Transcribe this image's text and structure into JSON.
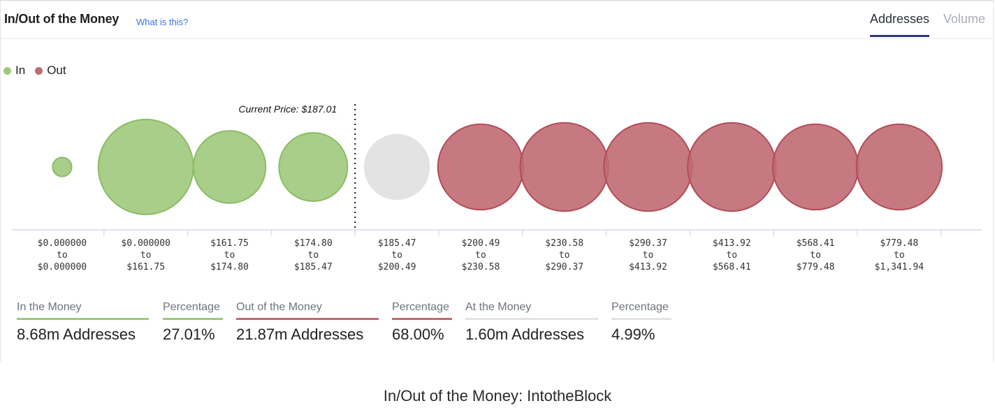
{
  "header": {
    "title": "In/Out of the Money",
    "help_link": "What is this?",
    "tabs": [
      {
        "label": "Addresses",
        "active": true
      },
      {
        "label": "Volume",
        "active": false
      }
    ]
  },
  "legend": [
    {
      "label": "In",
      "color": "#9ec97c"
    },
    {
      "label": "Out",
      "color": "#c06a72"
    }
  ],
  "chart_data": {
    "type": "scatter",
    "bubble_chart": true,
    "current_price_label": "Current Price: $187.01",
    "categories": [
      {
        "from": "$0.000000",
        "to": "$0.000000",
        "status": "in",
        "relative_size": 0.2
      },
      {
        "from": "$0.000000",
        "to": "$161.75",
        "status": "in",
        "relative_size": 1.0
      },
      {
        "from": "$161.75",
        "to": "$174.80",
        "status": "in",
        "relative_size": 0.76
      },
      {
        "from": "$174.80",
        "to": "$185.47",
        "status": "in",
        "relative_size": 0.72
      },
      {
        "from": "$185.47",
        "to": "$200.49",
        "status": "at",
        "relative_size": 0.68
      },
      {
        "from": "$200.49",
        "to": "$230.58",
        "status": "out",
        "relative_size": 0.9
      },
      {
        "from": "$230.58",
        "to": "$290.37",
        "status": "out",
        "relative_size": 0.93
      },
      {
        "from": "$290.37",
        "to": "$413.92",
        "status": "out",
        "relative_size": 0.93
      },
      {
        "from": "$413.92",
        "to": "$568.41",
        "status": "out",
        "relative_size": 0.93
      },
      {
        "from": "$568.41",
        "to": "$779.48",
        "status": "out",
        "relative_size": 0.9
      },
      {
        "from": "$779.48",
        "to": "$1,341.94",
        "status": "out",
        "relative_size": 0.9
      }
    ],
    "range_word": "to",
    "colors": {
      "in": "#9ec97c",
      "out": "#c06a72",
      "at": "#e3e3e3"
    }
  },
  "stats": [
    {
      "label": "In the Money",
      "value": "8.68m Addresses",
      "color": "#9ec97c"
    },
    {
      "label": "Percentage",
      "value": "27.01%",
      "color": "#9ec97c"
    },
    {
      "label": "Out of the Money",
      "value": "21.87m Addresses",
      "color": "#c06a72"
    },
    {
      "label": "Percentage",
      "value": "68.00%",
      "color": "#c06a72"
    },
    {
      "label": "At the Money",
      "value": "1.60m Addresses",
      "color": "#e3e3e3"
    },
    {
      "label": "Percentage",
      "value": "4.99%",
      "color": "#e3e3e3"
    }
  ],
  "caption": "In/Out of the Money: IntotheBlock"
}
